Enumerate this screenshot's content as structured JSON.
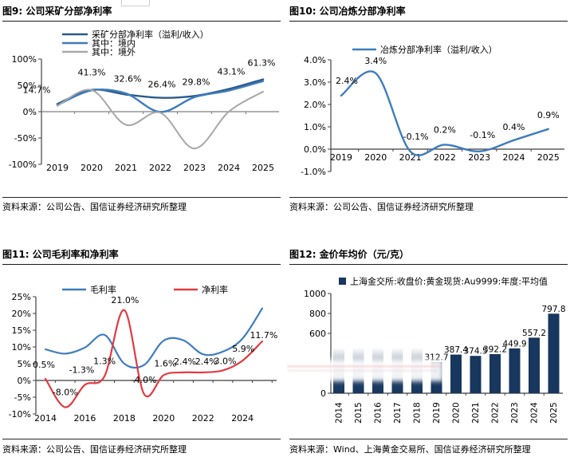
{
  "panels": [
    {
      "title": "图9: 公司采矿分部净利率",
      "source": "资料来源：公司公告、国信证券经济研究所整理"
    },
    {
      "title": "图10: 公司冶炼分部净利率",
      "source": "资料来源：公司公告、国信证券经济研究所整理"
    },
    {
      "title": "图11: 公司毛利率和净利率",
      "source": "资料来源：公司公告、国信证券经济研究所整理"
    },
    {
      "title": "图12: 金价年均价（元/克）",
      "source": "资料来源：Wind、上海黄金交易所、国信证券经济研究所整理"
    }
  ],
  "chart_data": [
    {
      "type": "line",
      "title": "图9: 公司采矿分部净利率",
      "x": [
        "2019",
        "2020",
        "2021",
        "2022",
        "2023",
        "2024",
        "2025"
      ],
      "ylim": [
        -100,
        100
      ],
      "ytick_values": [
        100,
        50,
        0,
        -50,
        -100
      ],
      "ytick_labels": [
        "100%",
        "50%",
        "0%",
        "-50%",
        "-100%"
      ],
      "grid": false,
      "legend_position": "top-left",
      "series": [
        {
          "name": "采矿分部净利率（溢利/收入）",
          "color": "#2B5A8A",
          "width": 2.4,
          "values": [
            14.7,
            41.3,
            32.6,
            26.4,
            29.8,
            43.1,
            61.3
          ],
          "labels": [
            "14.7%",
            "41.3%",
            "32.6%",
            "26.4%",
            "29.8%",
            "43.1%",
            "61.3%"
          ]
        },
        {
          "name": "其中：境内",
          "color": "#3E7CBE",
          "width": 2.4,
          "values": [
            12.5,
            40.5,
            34.5,
            -0.5,
            27.5,
            40.0,
            58.0
          ]
        },
        {
          "name": "其中：境外",
          "color": "#A8A8A8",
          "width": 2.0,
          "values": [
            11.0,
            41.0,
            -25.0,
            -2.0,
            -70.0,
            0.0,
            38.0
          ]
        }
      ]
    },
    {
      "type": "line",
      "title": "图10: 公司冶炼分部净利率",
      "x": [
        "2019",
        "2020",
        "2021",
        "2022",
        "2023",
        "2024",
        "2025"
      ],
      "ylim": [
        -1,
        4
      ],
      "ytick_values": [
        4,
        3,
        2,
        1,
        0,
        -1
      ],
      "ytick_labels": [
        "4.0%",
        "3.0%",
        "2.0%",
        "1.0%",
        "0.0%",
        "-1.0%"
      ],
      "grid": false,
      "legend_position": "top-center",
      "series": [
        {
          "name": "冶炼分部净利率（溢利/收入）",
          "color": "#3E7CBE",
          "width": 2.4,
          "values": [
            2.4,
            3.4,
            -0.1,
            0.2,
            -0.1,
            0.4,
            0.9
          ],
          "labels": [
            "2.4%",
            "3.4%",
            "-0.1%",
            "0.2%",
            "-0.1%",
            "0.4%",
            "0.9%"
          ]
        }
      ]
    },
    {
      "type": "line",
      "title": "图11: 公司毛利率和净利率",
      "x": [
        "2014",
        "2015",
        "2016",
        "2017",
        "2018",
        "2019",
        "2020",
        "2021",
        "2022",
        "2023",
        "2024",
        "2025"
      ],
      "xtick_shown": [
        "2014",
        "2016",
        "2018",
        "2020",
        "2022",
        "2024"
      ],
      "ylim": [
        -10,
        25
      ],
      "ytick_values": [
        25,
        20,
        15,
        10,
        5,
        0,
        -5,
        -10
      ],
      "ytick_labels": [
        "25%",
        "20%",
        "15%",
        "10%",
        "5%",
        "0%",
        "-5%",
        "-10%"
      ],
      "grid": false,
      "legend_position": "top",
      "series": [
        {
          "name": "毛利率",
          "color": "#3E7CBE",
          "width": 2.2,
          "values": [
            9.3,
            8.0,
            9.8,
            13.6,
            5.0,
            4.6,
            11.9,
            12.0,
            7.8,
            8.6,
            12.5,
            21.5
          ]
        },
        {
          "name": "净利率",
          "color": "#E03B41",
          "width": 2.2,
          "values": [
            0.5,
            -8.0,
            -1.3,
            1.3,
            21.0,
            -4.0,
            1.6,
            2.4,
            2.4,
            3.0,
            5.9,
            11.7
          ],
          "labels": [
            "0.5%",
            "-8.0%",
            "-1.3%",
            "1.3%",
            "21.0%",
            "-4.0%",
            "1.6%",
            "2.4%",
            "2.4%",
            "3.0%",
            "5.9%",
            "11.7%"
          ]
        }
      ]
    },
    {
      "type": "bar",
      "title": "图12: 金价年均价（元/克）",
      "legend": "上海金交所:收盘价:黄金现货:Au9999:年度:平均值",
      "categories": [
        "2014",
        "2015",
        "2016",
        "2017",
        "2018",
        "2019",
        "2020",
        "2021",
        "2022",
        "2023",
        "2024",
        "2025"
      ],
      "values": [
        460,
        460,
        460,
        460,
        460,
        312.7,
        387.4,
        374.5,
        392.2,
        449.9,
        557.2,
        797.8
      ],
      "blurred": [
        true,
        true,
        true,
        true,
        true,
        false,
        false,
        false,
        false,
        false,
        false,
        false
      ],
      "labels": [
        null,
        null,
        null,
        null,
        null,
        "312.7",
        "387.4",
        "374.5",
        "392.2",
        "449.9",
        "557.2",
        "797.8"
      ],
      "ylim": [
        0,
        1000
      ],
      "ytick_values": [
        1000,
        800,
        600,
        0
      ],
      "ytick_labels": [
        "1000",
        "800",
        "600",
        "0"
      ],
      "bar_color": "#17375E",
      "grid": false,
      "legend_position": "top"
    }
  ]
}
